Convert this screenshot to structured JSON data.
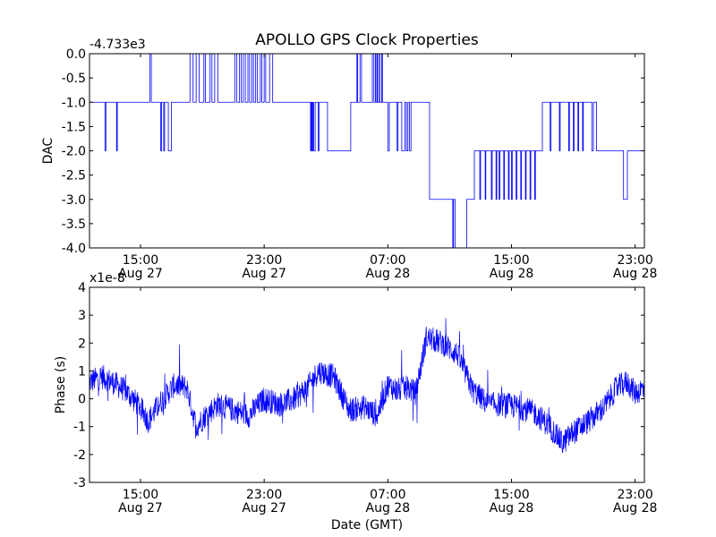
{
  "chart_data": {
    "title": "APOLLO GPS Clock Properties",
    "colors": {
      "line": "#0000ff",
      "axes": "#000000",
      "background": "#ffffff"
    },
    "x_ticks": [
      {
        "time": "15:00",
        "date": "Aug 27",
        "hours": 15
      },
      {
        "time": "23:00",
        "date": "Aug 27",
        "hours": 23
      },
      {
        "time": "07:00",
        "date": "Aug 28",
        "hours": 31
      },
      {
        "time": "15:00",
        "date": "Aug 28",
        "hours": 39
      },
      {
        "time": "23:00",
        "date": "Aug 28",
        "hours": 47
      }
    ],
    "x_range_hours": [
      11.7,
      47.6
    ],
    "panels": [
      {
        "id": "dac",
        "type": "line",
        "ylabel": "DAC",
        "offset_label": "-4.733e3",
        "ylim": [
          -4.0,
          0.0
        ],
        "yticks": [
          {
            "value": 0.0,
            "label": "0.0"
          },
          {
            "value": -0.5,
            "label": "-0.5"
          },
          {
            "value": -1.0,
            "label": "-1.0"
          },
          {
            "value": -1.5,
            "label": "-1.5"
          },
          {
            "value": -2.0,
            "label": "-2.0"
          },
          {
            "value": -2.5,
            "label": "-2.5"
          },
          {
            "value": -3.0,
            "label": "-3.0"
          },
          {
            "value": -3.5,
            "label": "-3.5"
          },
          {
            "value": -4.0,
            "label": "-4.0"
          }
        ],
        "steps": [
          [
            11.7,
            -1
          ],
          [
            12.7,
            -2
          ],
          [
            12.76,
            -1
          ],
          [
            13.4,
            -1
          ],
          [
            13.45,
            -2
          ],
          [
            13.5,
            -1
          ],
          [
            15.6,
            0
          ],
          [
            15.7,
            -1
          ],
          [
            16.0,
            -1
          ],
          [
            16.2,
            -1
          ],
          [
            16.3,
            -2
          ],
          [
            16.36,
            -1
          ],
          [
            16.5,
            -2
          ],
          [
            16.56,
            -1
          ],
          [
            16.7,
            -1
          ],
          [
            16.8,
            -2
          ],
          [
            17.0,
            -1
          ],
          [
            18.2,
            0
          ],
          [
            18.4,
            -1
          ],
          [
            18.6,
            0
          ],
          [
            18.8,
            -1
          ],
          [
            19.0,
            -1
          ],
          [
            19.1,
            0
          ],
          [
            19.2,
            -1
          ],
          [
            19.5,
            0
          ],
          [
            19.62,
            -1
          ],
          [
            19.8,
            0
          ],
          [
            20.0,
            -1
          ],
          [
            21.0,
            -1
          ],
          [
            21.1,
            0
          ],
          [
            21.22,
            -1
          ],
          [
            21.4,
            0
          ],
          [
            21.52,
            -1
          ],
          [
            21.65,
            0
          ],
          [
            21.78,
            -1
          ],
          [
            21.95,
            0
          ],
          [
            22.06,
            -1
          ],
          [
            22.2,
            0
          ],
          [
            22.31,
            -1
          ],
          [
            22.45,
            0
          ],
          [
            22.56,
            -1
          ],
          [
            22.75,
            0
          ],
          [
            22.85,
            -1
          ],
          [
            23.0,
            0
          ],
          [
            23.1,
            -1
          ],
          [
            23.35,
            0
          ],
          [
            23.55,
            -1
          ],
          [
            25.6,
            -1
          ],
          [
            26.0,
            -2
          ],
          [
            26.05,
            -1
          ],
          [
            26.1,
            -2
          ],
          [
            26.15,
            -1
          ],
          [
            26.2,
            -2
          ],
          [
            26.3,
            -1
          ],
          [
            26.5,
            -2
          ],
          [
            26.56,
            -1
          ],
          [
            26.7,
            -1
          ],
          [
            26.9,
            -1
          ],
          [
            27.1,
            -2
          ],
          [
            27.2,
            -2
          ],
          [
            28.6,
            -1
          ],
          [
            29.0,
            0
          ],
          [
            29.05,
            -1
          ],
          [
            29.2,
            0
          ],
          [
            29.3,
            -1
          ],
          [
            29.8,
            -1
          ],
          [
            30.0,
            0
          ],
          [
            30.1,
            -1
          ],
          [
            30.2,
            0
          ],
          [
            30.22,
            -1
          ],
          [
            30.3,
            0
          ],
          [
            30.34,
            -1
          ],
          [
            30.45,
            0
          ],
          [
            30.48,
            -1
          ],
          [
            30.6,
            0
          ],
          [
            30.65,
            -1
          ],
          [
            31.0,
            -2
          ],
          [
            31.1,
            -1
          ],
          [
            31.3,
            -1
          ],
          [
            31.6,
            -2
          ],
          [
            31.66,
            -1
          ],
          [
            31.9,
            -2
          ],
          [
            32.1,
            -1
          ],
          [
            32.2,
            -2
          ],
          [
            32.3,
            -1
          ],
          [
            32.4,
            -2
          ],
          [
            32.5,
            -1
          ],
          [
            33.2,
            -1
          ],
          [
            33.7,
            -3
          ],
          [
            35.2,
            -4
          ],
          [
            35.25,
            -3
          ],
          [
            35.3,
            -3
          ],
          [
            35.35,
            -4
          ],
          [
            36.1,
            -3
          ],
          [
            36.5,
            -3
          ],
          [
            36.6,
            -2
          ],
          [
            36.95,
            -3
          ],
          [
            37.0,
            -2
          ],
          [
            37.3,
            -3
          ],
          [
            37.34,
            -2
          ],
          [
            37.5,
            -2
          ],
          [
            37.7,
            -3
          ],
          [
            37.75,
            -2
          ],
          [
            38.0,
            -3
          ],
          [
            38.05,
            -2
          ],
          [
            38.2,
            -3
          ],
          [
            38.25,
            -2
          ],
          [
            38.5,
            -3
          ],
          [
            38.55,
            -2
          ],
          [
            38.8,
            -3
          ],
          [
            38.85,
            -2
          ],
          [
            39.0,
            -3
          ],
          [
            39.05,
            -2
          ],
          [
            39.3,
            -3
          ],
          [
            39.35,
            -2
          ],
          [
            39.6,
            -3
          ],
          [
            39.65,
            -2
          ],
          [
            39.9,
            -3
          ],
          [
            39.95,
            -2
          ],
          [
            40.2,
            -3
          ],
          [
            40.25,
            -2
          ],
          [
            40.5,
            -3
          ],
          [
            40.55,
            -2
          ],
          [
            40.8,
            -2
          ],
          [
            41.0,
            -1
          ],
          [
            41.5,
            -2
          ],
          [
            41.56,
            -1
          ],
          [
            41.7,
            -1
          ],
          [
            42.1,
            -2
          ],
          [
            42.15,
            -1
          ],
          [
            42.4,
            -1
          ],
          [
            42.7,
            -2
          ],
          [
            42.75,
            -1
          ],
          [
            43.0,
            -2
          ],
          [
            43.05,
            -1
          ],
          [
            43.3,
            -2
          ],
          [
            43.35,
            -1
          ],
          [
            43.6,
            -2
          ],
          [
            43.65,
            -1
          ],
          [
            43.8,
            -1
          ],
          [
            44.2,
            -2
          ],
          [
            44.3,
            -1
          ],
          [
            44.5,
            -2
          ],
          [
            46.0,
            -2
          ],
          [
            46.25,
            -3
          ],
          [
            46.5,
            -2
          ],
          [
            47.0,
            -2
          ],
          [
            47.3,
            -2
          ],
          [
            47.6,
            -2
          ]
        ]
      },
      {
        "id": "phase",
        "type": "line",
        "ylabel": "Phase (s)",
        "xlabel": "Date (GMT)",
        "offset_label": "x1e-8",
        "ylim": [
          -3,
          4
        ],
        "yticks": [
          {
            "value": 4,
            "label": "4"
          },
          {
            "value": 3,
            "label": "3"
          },
          {
            "value": 2,
            "label": "2"
          },
          {
            "value": 1,
            "label": "1"
          },
          {
            "value": 0,
            "label": "0"
          },
          {
            "value": -1,
            "label": "-1"
          },
          {
            "value": -2,
            "label": "-2"
          },
          {
            "value": -3,
            "label": "-3"
          }
        ],
        "trend": [
          [
            11.7,
            0.6
          ],
          [
            12.5,
            0.8
          ],
          [
            13.2,
            0.6
          ],
          [
            14.0,
            0.3
          ],
          [
            15.0,
            -0.3
          ],
          [
            15.5,
            -0.8
          ],
          [
            16.2,
            -0.2
          ],
          [
            17.2,
            0.5
          ],
          [
            18.0,
            0.4
          ],
          [
            18.6,
            -1.0
          ],
          [
            19.2,
            -0.6
          ],
          [
            20.0,
            -0.2
          ],
          [
            21.0,
            -0.4
          ],
          [
            22.0,
            -0.6
          ],
          [
            23.0,
            0.0
          ],
          [
            24.0,
            -0.2
          ],
          [
            25.0,
            0.0
          ],
          [
            25.8,
            0.4
          ],
          [
            26.5,
            1.0
          ],
          [
            27.5,
            0.8
          ],
          [
            28.5,
            -0.4
          ],
          [
            29.5,
            -0.3
          ],
          [
            30.3,
            -0.6
          ],
          [
            31.0,
            0.5
          ],
          [
            31.6,
            0.3
          ],
          [
            32.3,
            0.4
          ],
          [
            32.8,
            0.2
          ],
          [
            33.5,
            2.2
          ],
          [
            34.5,
            2.0
          ],
          [
            35.5,
            1.6
          ],
          [
            36.5,
            0.3
          ],
          [
            37.5,
            -0.2
          ],
          [
            38.5,
            -0.2
          ],
          [
            39.5,
            -0.3
          ],
          [
            40.5,
            -0.5
          ],
          [
            41.5,
            -1.0
          ],
          [
            42.3,
            -1.6
          ],
          [
            43.0,
            -1.2
          ],
          [
            44.0,
            -0.8
          ],
          [
            45.0,
            -0.3
          ],
          [
            45.8,
            0.4
          ],
          [
            46.5,
            0.6
          ],
          [
            47.0,
            0.2
          ],
          [
            47.6,
            0.4
          ]
        ],
        "noise_amplitude": 0.45,
        "sample_count": 1800
      }
    ]
  }
}
